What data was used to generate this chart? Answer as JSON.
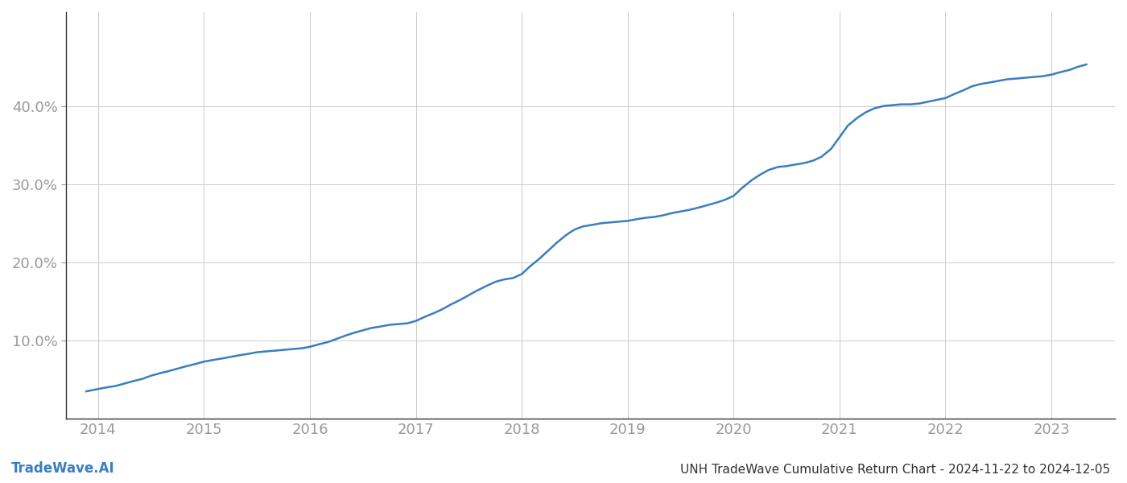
{
  "title": "UNH TradeWave Cumulative Return Chart - 2024-11-22 to 2024-12-05",
  "watermark": "TradeWave.AI",
  "line_color": "#3a7ebf",
  "background_color": "#ffffff",
  "grid_color": "#cccccc",
  "x_years": [
    2013.89,
    2014.0,
    2014.08,
    2014.17,
    2014.25,
    2014.33,
    2014.42,
    2014.5,
    2014.58,
    2014.67,
    2014.75,
    2014.83,
    2014.92,
    2015.0,
    2015.08,
    2015.17,
    2015.25,
    2015.33,
    2015.42,
    2015.5,
    2015.58,
    2015.67,
    2015.75,
    2015.83,
    2015.92,
    2016.0,
    2016.08,
    2016.17,
    2016.25,
    2016.33,
    2016.42,
    2016.5,
    2016.58,
    2016.67,
    2016.75,
    2016.83,
    2016.92,
    2017.0,
    2017.08,
    2017.17,
    2017.25,
    2017.33,
    2017.42,
    2017.5,
    2017.58,
    2017.67,
    2017.75,
    2017.83,
    2017.92,
    2018.0,
    2018.08,
    2018.17,
    2018.25,
    2018.33,
    2018.42,
    2018.5,
    2018.58,
    2018.67,
    2018.75,
    2019.0,
    2019.08,
    2019.17,
    2019.25,
    2019.33,
    2019.42,
    2019.5,
    2019.58,
    2019.67,
    2019.75,
    2019.83,
    2019.92,
    2020.0,
    2020.08,
    2020.17,
    2020.25,
    2020.33,
    2020.42,
    2020.5,
    2020.58,
    2020.67,
    2020.75,
    2020.83,
    2020.92,
    2021.0,
    2021.08,
    2021.17,
    2021.25,
    2021.33,
    2021.42,
    2021.5,
    2021.58,
    2021.67,
    2021.75,
    2022.0,
    2022.08,
    2022.17,
    2022.25,
    2022.33,
    2022.42,
    2022.5,
    2022.58,
    2022.67,
    2022.75,
    2022.83,
    2022.92,
    2023.0,
    2023.08,
    2023.17,
    2023.25,
    2023.33
  ],
  "y_values": [
    3.5,
    3.8,
    4.0,
    4.2,
    4.5,
    4.8,
    5.1,
    5.5,
    5.8,
    6.1,
    6.4,
    6.7,
    7.0,
    7.3,
    7.5,
    7.7,
    7.9,
    8.1,
    8.3,
    8.5,
    8.6,
    8.7,
    8.8,
    8.9,
    9.0,
    9.2,
    9.5,
    9.8,
    10.2,
    10.6,
    11.0,
    11.3,
    11.6,
    11.8,
    12.0,
    12.1,
    12.2,
    12.5,
    13.0,
    13.5,
    14.0,
    14.6,
    15.2,
    15.8,
    16.4,
    17.0,
    17.5,
    17.8,
    18.0,
    18.5,
    19.5,
    20.5,
    21.5,
    22.5,
    23.5,
    24.2,
    24.6,
    24.8,
    25.0,
    25.3,
    25.5,
    25.7,
    25.8,
    26.0,
    26.3,
    26.5,
    26.7,
    27.0,
    27.3,
    27.6,
    28.0,
    28.5,
    29.5,
    30.5,
    31.2,
    31.8,
    32.2,
    32.3,
    32.5,
    32.7,
    33.0,
    33.5,
    34.5,
    36.0,
    37.5,
    38.5,
    39.2,
    39.7,
    40.0,
    40.1,
    40.2,
    40.2,
    40.3,
    41.0,
    41.5,
    42.0,
    42.5,
    42.8,
    43.0,
    43.2,
    43.4,
    43.5,
    43.6,
    43.7,
    43.8,
    44.0,
    44.3,
    44.6,
    45.0,
    45.3
  ],
  "xlim": [
    2013.7,
    2023.6
  ],
  "ylim": [
    0,
    52
  ],
  "yticks": [
    10.0,
    20.0,
    30.0,
    40.0
  ],
  "ytick_labels": [
    "10.0%",
    "20.0%",
    "30.0%",
    "40.0%"
  ],
  "xticks": [
    2014,
    2015,
    2016,
    2017,
    2018,
    2019,
    2020,
    2021,
    2022,
    2023
  ],
  "tick_color": "#999999",
  "label_fontsize": 13,
  "title_fontsize": 11,
  "watermark_fontsize": 12,
  "line_width": 1.8
}
